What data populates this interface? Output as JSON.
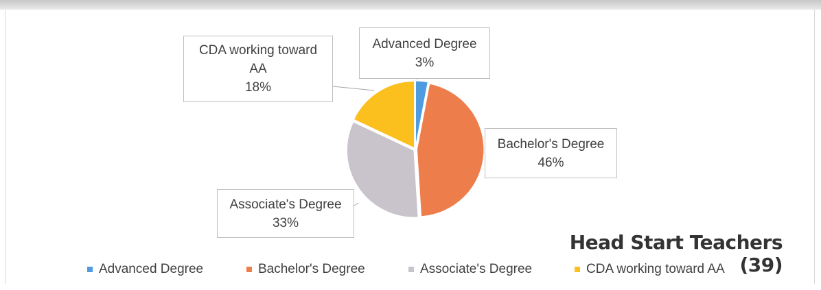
{
  "colors": {
    "advanced": "#4e9be0",
    "bachelor": "#ee7d4c",
    "associate": "#c9c4cc",
    "cda": "#fbbf1e"
  },
  "chart_data": {
    "type": "pie",
    "title": "Head Start Teachers (39)",
    "slices": [
      {
        "label": "Advanced Degree",
        "value": 3,
        "display": "3%",
        "color": "#4e9be0"
      },
      {
        "label": "Bachelor's Degree",
        "value": 46,
        "display": "46%",
        "color": "#ee7d4c"
      },
      {
        "label": "Associate's Degree",
        "value": 33,
        "display": "33%",
        "color": "#c9c4cc"
      },
      {
        "label": "CDA working toward AA",
        "value": 18,
        "display": "18%",
        "color": "#fbbf1e"
      }
    ],
    "legend_position": "bottom"
  },
  "callouts": {
    "cda": {
      "line1": "CDA working toward",
      "line2": "AA",
      "pct": "18%"
    },
    "advanced": {
      "line1": "Advanced Degree",
      "pct": "3%"
    },
    "bachelor": {
      "line1": "Bachelor's Degree",
      "pct": "46%"
    },
    "associate": {
      "line1": "Associate's Degree",
      "pct": "33%"
    }
  },
  "legend": {
    "advanced": "Advanced Degree",
    "bachelor": "Bachelor's Degree",
    "associate": "Associate's Degree",
    "cda": "CDA working toward AA"
  }
}
